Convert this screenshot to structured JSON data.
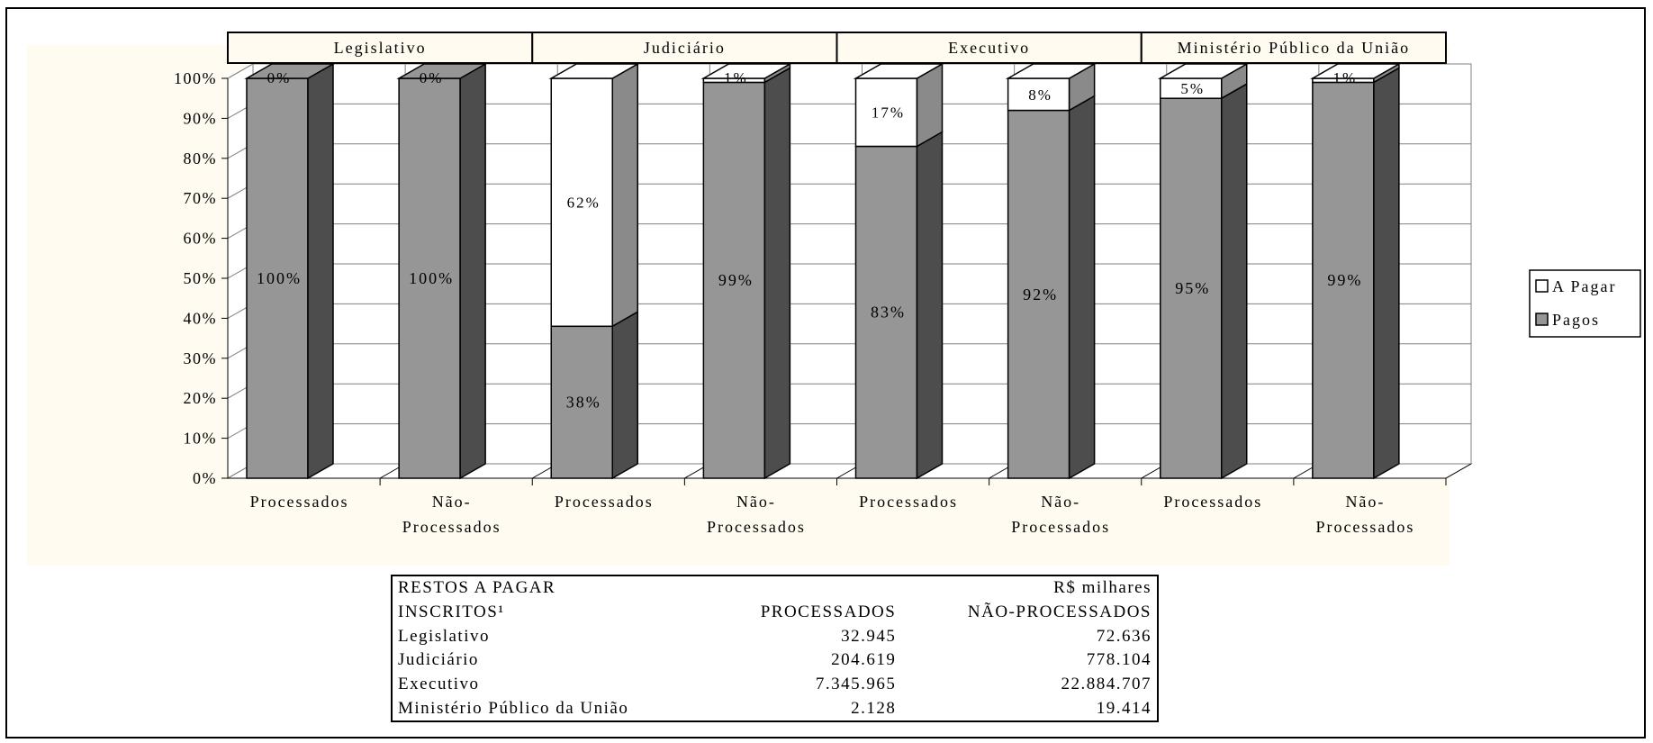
{
  "chart_data": {
    "type": "bar",
    "stacked": true,
    "percent": true,
    "three_d": true,
    "groups": [
      "Legislativo",
      "Judiciário",
      "Executivo",
      "Ministério Público da União"
    ],
    "categories": [
      "Processados",
      "Não-Processados",
      "Processados",
      "Não-Processados",
      "Processados",
      "Não-Processados",
      "Processados",
      "Não-Processados"
    ],
    "category_labels": [
      [
        "Processados"
      ],
      [
        "Não-",
        "Processados"
      ],
      [
        "Processados"
      ],
      [
        "Não-",
        "Processados"
      ],
      [
        "Processados"
      ],
      [
        "Não-",
        "Processados"
      ],
      [
        "Processados"
      ],
      [
        "Não-",
        "Processados"
      ]
    ],
    "series": [
      {
        "name": "Pagos",
        "values": [
          100,
          100,
          38,
          99,
          83,
          92,
          95,
          99
        ],
        "labels": [
          "100%",
          "100%",
          "38%",
          "99%",
          "83%",
          "92%",
          "95%",
          "99%"
        ],
        "color": "#969696"
      },
      {
        "name": "A Pagar",
        "values": [
          0,
          0,
          62,
          1,
          17,
          8,
          5,
          1
        ],
        "labels": [
          "0%",
          "0%",
          "62%",
          "1%",
          "17%",
          "8%",
          "5%",
          "1%"
        ],
        "color": "#ffffff"
      }
    ],
    "legend": {
      "entries": [
        "A Pagar",
        "Pagos"
      ],
      "placement": "right"
    },
    "yticks": [
      "0%",
      "10%",
      "20%",
      "30%",
      "40%",
      "50%",
      "60%",
      "70%",
      "80%",
      "90%",
      "100%"
    ],
    "ylim": [
      0,
      100
    ],
    "grid": true,
    "colors": {
      "plot_background": "#fffbf0",
      "pagos": "#969696",
      "pagos_side": "#4d4d4d",
      "a_pagar_side": "#8a8a8a"
    }
  },
  "table": {
    "title_line1": "RESTOS A PAGAR",
    "unit": "R$ milhares",
    "title_line2": "INSCRITOS¹",
    "col_processados": "PROCESSADOS",
    "col_nao_processados": "NÃO-PROCESSADOS",
    "rows": [
      {
        "name": "Legislativo",
        "processados": "32.945",
        "nao_processados": "72.636"
      },
      {
        "name": "Judiciário",
        "processados": "204.619",
        "nao_processados": "778.104"
      },
      {
        "name": "Executivo",
        "processados": "7.345.965",
        "nao_processados": "22.884.707"
      },
      {
        "name": "Ministério Público da União",
        "processados": "2.128",
        "nao_processados": "19.414"
      }
    ]
  }
}
